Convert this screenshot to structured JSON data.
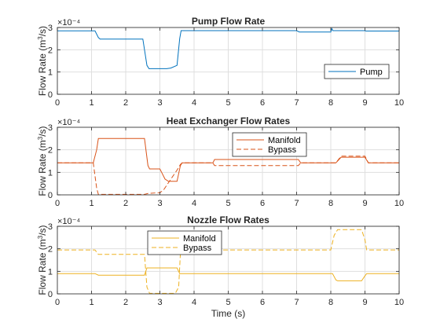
{
  "chart_data": [
    {
      "type": "line",
      "title": "Pump Flow Rate",
      "ylabel": "Flow Rate (m^3/s)",
      "xlabel": "",
      "xlim": [
        0,
        10
      ],
      "ylim": [
        0,
        3
      ],
      "x_ticks": [
        "0",
        "1",
        "2",
        "3",
        "4",
        "5",
        "6",
        "7",
        "8",
        "9",
        "10"
      ],
      "y_ticks": [
        "0",
        "1",
        "2",
        "3"
      ],
      "y_exponent": "×10⁻⁴",
      "legend_position": "lower-right",
      "series": [
        {
          "name": "Pump",
          "color": "#0072BD",
          "dash": "solid",
          "x": [
            0,
            1.1,
            1.2,
            1.25,
            2.5,
            2.62,
            2.68,
            3.2,
            3.32,
            3.5,
            3.58,
            3.62,
            7.0,
            7.08,
            8.0,
            8.03,
            8.06,
            9.0,
            9.03,
            10
          ],
          "y": [
            2.85,
            2.85,
            2.55,
            2.48,
            2.48,
            1.3,
            1.15,
            1.15,
            1.18,
            1.3,
            2.5,
            2.86,
            2.86,
            2.8,
            2.8,
            2.95,
            2.86,
            2.86,
            2.84,
            2.84
          ]
        }
      ]
    },
    {
      "type": "line",
      "title": "Heat Exchanger Flow Rates",
      "ylabel": "Flow Rate (m^3/s)",
      "xlabel": "",
      "xlim": [
        0,
        10
      ],
      "ylim": [
        0,
        3
      ],
      "x_ticks": [
        "0",
        "1",
        "2",
        "3",
        "4",
        "5",
        "6",
        "7",
        "8",
        "9",
        "10"
      ],
      "y_ticks": [
        "0",
        "1",
        "2",
        "3"
      ],
      "y_exponent": "×10⁻⁴",
      "legend_position": "top-center",
      "series": [
        {
          "name": "Manifold",
          "color": "#D95319",
          "dash": "solid",
          "x": [
            0,
            1.05,
            1.15,
            1.2,
            2.55,
            2.65,
            2.7,
            3.0,
            3.05,
            3.15,
            3.25,
            3.5,
            3.6,
            3.65,
            4.55,
            4.6,
            7.05,
            7.12,
            8.15,
            8.3,
            9.0,
            9.1,
            10
          ],
          "y": [
            1.42,
            1.42,
            2.0,
            2.5,
            2.5,
            1.3,
            1.15,
            1.15,
            1.0,
            0.7,
            0.6,
            0.6,
            1.3,
            1.42,
            1.42,
            1.57,
            1.57,
            1.42,
            1.42,
            1.67,
            1.67,
            1.42,
            1.42
          ]
        },
        {
          "name": "Bypass",
          "color": "#D95319",
          "dash": "dashed",
          "x": [
            0,
            1.05,
            1.15,
            1.2,
            2.55,
            2.65,
            3.0,
            3.1,
            3.3,
            3.5,
            3.6,
            3.65,
            4.55,
            4.6,
            7.05,
            7.12,
            8.15,
            8.3,
            9.0,
            9.1,
            10
          ],
          "y": [
            1.42,
            1.42,
            0.3,
            0.02,
            0.02,
            0.06,
            0.1,
            0.2,
            0.65,
            1.1,
            1.35,
            1.42,
            1.42,
            1.3,
            1.3,
            1.42,
            1.42,
            1.72,
            1.72,
            1.42,
            1.42
          ]
        }
      ]
    },
    {
      "type": "line",
      "title": "Nozzle Flow Rates",
      "ylabel": "Flow Rate (m^3/s)",
      "xlabel": "Time (s)",
      "xlim": [
        0,
        10
      ],
      "ylim": [
        0,
        3
      ],
      "x_ticks": [
        "0",
        "1",
        "2",
        "3",
        "4",
        "5",
        "6",
        "7",
        "8",
        "9",
        "10"
      ],
      "y_ticks": [
        "0",
        "1",
        "2",
        "3"
      ],
      "y_exponent": "×10⁻⁴",
      "legend_position": "top-left",
      "series": [
        {
          "name": "Manifold",
          "color": "#EDB120",
          "dash": "solid",
          "x": [
            0,
            1.1,
            1.2,
            2.55,
            2.62,
            3.5,
            3.58,
            3.65,
            8.05,
            8.15,
            8.2,
            8.9,
            9.0,
            9.05,
            10
          ],
          "y": [
            0.9,
            0.9,
            0.83,
            0.83,
            1.15,
            1.15,
            0.9,
            0.9,
            0.9,
            0.62,
            0.58,
            0.58,
            0.8,
            0.9,
            0.9
          ]
        },
        {
          "name": "Bypass",
          "color": "#EDB120",
          "dash": "dashed",
          "x": [
            0,
            1.1,
            1.2,
            2.55,
            2.62,
            2.7,
            3.45,
            3.55,
            3.6,
            3.65,
            8.0,
            8.1,
            8.2,
            8.9,
            9.0,
            9.05,
            10
          ],
          "y": [
            1.95,
            1.95,
            1.75,
            1.75,
            0.3,
            0.02,
            0.02,
            0.3,
            1.8,
            1.95,
            1.95,
            2.6,
            2.85,
            2.85,
            2.4,
            1.95,
            1.95
          ]
        }
      ]
    }
  ]
}
